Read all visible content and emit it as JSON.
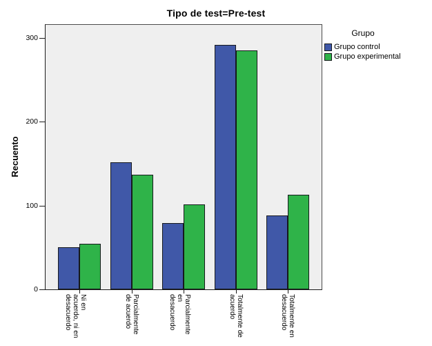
{
  "title": "Tipo de test=Pre-test",
  "chart_data": {
    "type": "bar",
    "title": "Tipo de test=Pre-test",
    "xlabel": "",
    "ylabel": "Recuento",
    "ylim": [
      0,
      316
    ],
    "yticks": [
      0,
      100,
      200,
      300
    ],
    "grid": false,
    "plot_background": "#EFEFEF",
    "legend_title": "Grupo",
    "legend_position": "top-right-outside",
    "categories": [
      "Ni en acuerdo, ni en desacuerdo",
      "Parcialmente de acuerdo",
      "Parcialmente en desacuerdo",
      "Totalmente de acuerdo",
      "Totalmente en desacuerdo"
    ],
    "category_display_lines": [
      [
        "Ni en",
        "acuerdo, ni en",
        "desacuerdo"
      ],
      [
        "Parcialmente",
        "de acuerdo"
      ],
      [
        "Parcialmente",
        "en",
        "desacuerdo"
      ],
      [
        "Totalmente de",
        "acuerdo"
      ],
      [
        "Totalmente en",
        "desacuerdo"
      ]
    ],
    "series": [
      {
        "name": "Grupo control",
        "color": "#4058A8",
        "values": [
          50,
          152,
          79,
          292,
          88
        ]
      },
      {
        "name": "Grupo experimental",
        "color": "#2FB349",
        "values": [
          54,
          137,
          101,
          285,
          113
        ]
      }
    ]
  }
}
